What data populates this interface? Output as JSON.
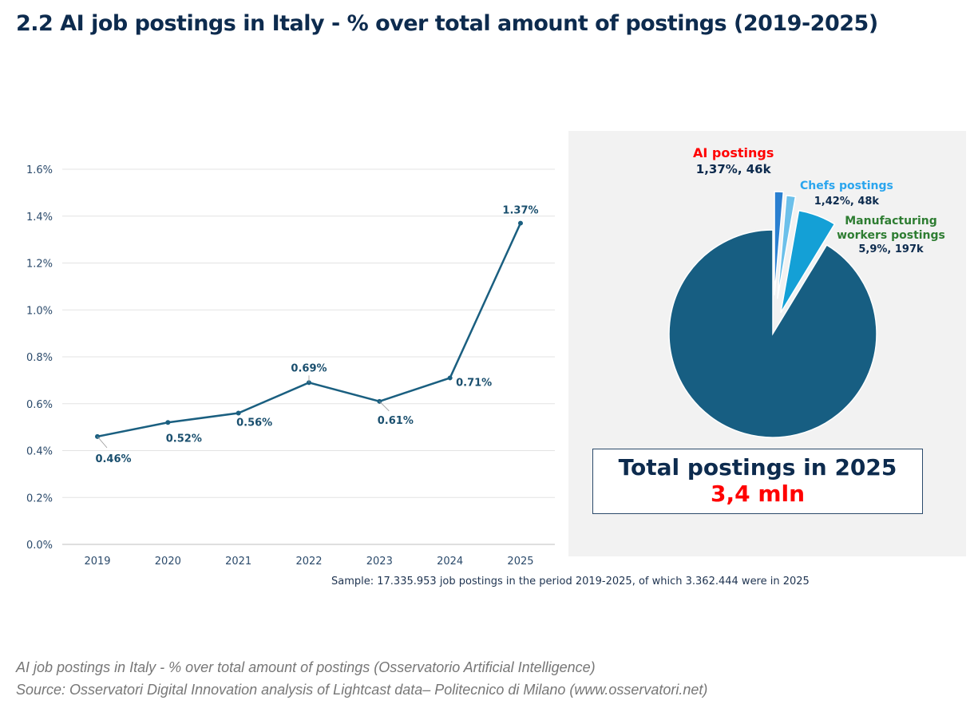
{
  "title": "2.2 AI job postings in Italy - % over total amount of postings (2019-2025)",
  "chart_data": [
    {
      "type": "line",
      "categories": [
        "2019",
        "2020",
        "2021",
        "2022",
        "2023",
        "2024",
        "2025"
      ],
      "values": [
        0.46,
        0.52,
        0.56,
        0.69,
        0.61,
        0.71,
        1.37
      ],
      "data_labels": [
        "0.46%",
        "0.52%",
        "0.56%",
        "0.69%",
        "0.61%",
        "0.71%",
        "1.37%"
      ],
      "yticks": [
        "0.0%",
        "0.2%",
        "0.4%",
        "0.6%",
        "0.8%",
        "1.0%",
        "1.2%",
        "1.4%",
        "1.6%"
      ],
      "ylim": [
        0,
        1.6
      ],
      "grid": true,
      "color": "#1a5f80"
    },
    {
      "type": "pie",
      "slices": [
        {
          "name": "AI postings",
          "value": 1.37,
          "label": "1,37%, 46k",
          "color": "#2a7fd0",
          "name_color": "#ff0000"
        },
        {
          "name": "Chefs postings",
          "value": 1.42,
          "label": "1,42%, 48k",
          "color": "#6cc0ea",
          "name_color": "#2aa5ee"
        },
        {
          "name": "Manufacturing workers postings",
          "value": 5.9,
          "label": "5,9%, 197k",
          "color": "#14a0d6",
          "name_color": "#2e7d32"
        },
        {
          "name": "",
          "value": 91.31,
          "color": "#175e82"
        }
      ]
    }
  ],
  "total_box": {
    "title": "Total postings in 2025",
    "value": "3,4 mln"
  },
  "sample_note": "Sample: 17.335.953 job postings in the period 2019-2025, of which 3.362.444 were in 2025",
  "caption": {
    "line1": "AI job postings in Italy - % over total amount of postings (Osservatorio Artificial Intelligence)",
    "line2": "Source: Osservatori Digital Innovation analysis of Lightcast data– Politecnico di Milano (www.osservatori.net)"
  }
}
